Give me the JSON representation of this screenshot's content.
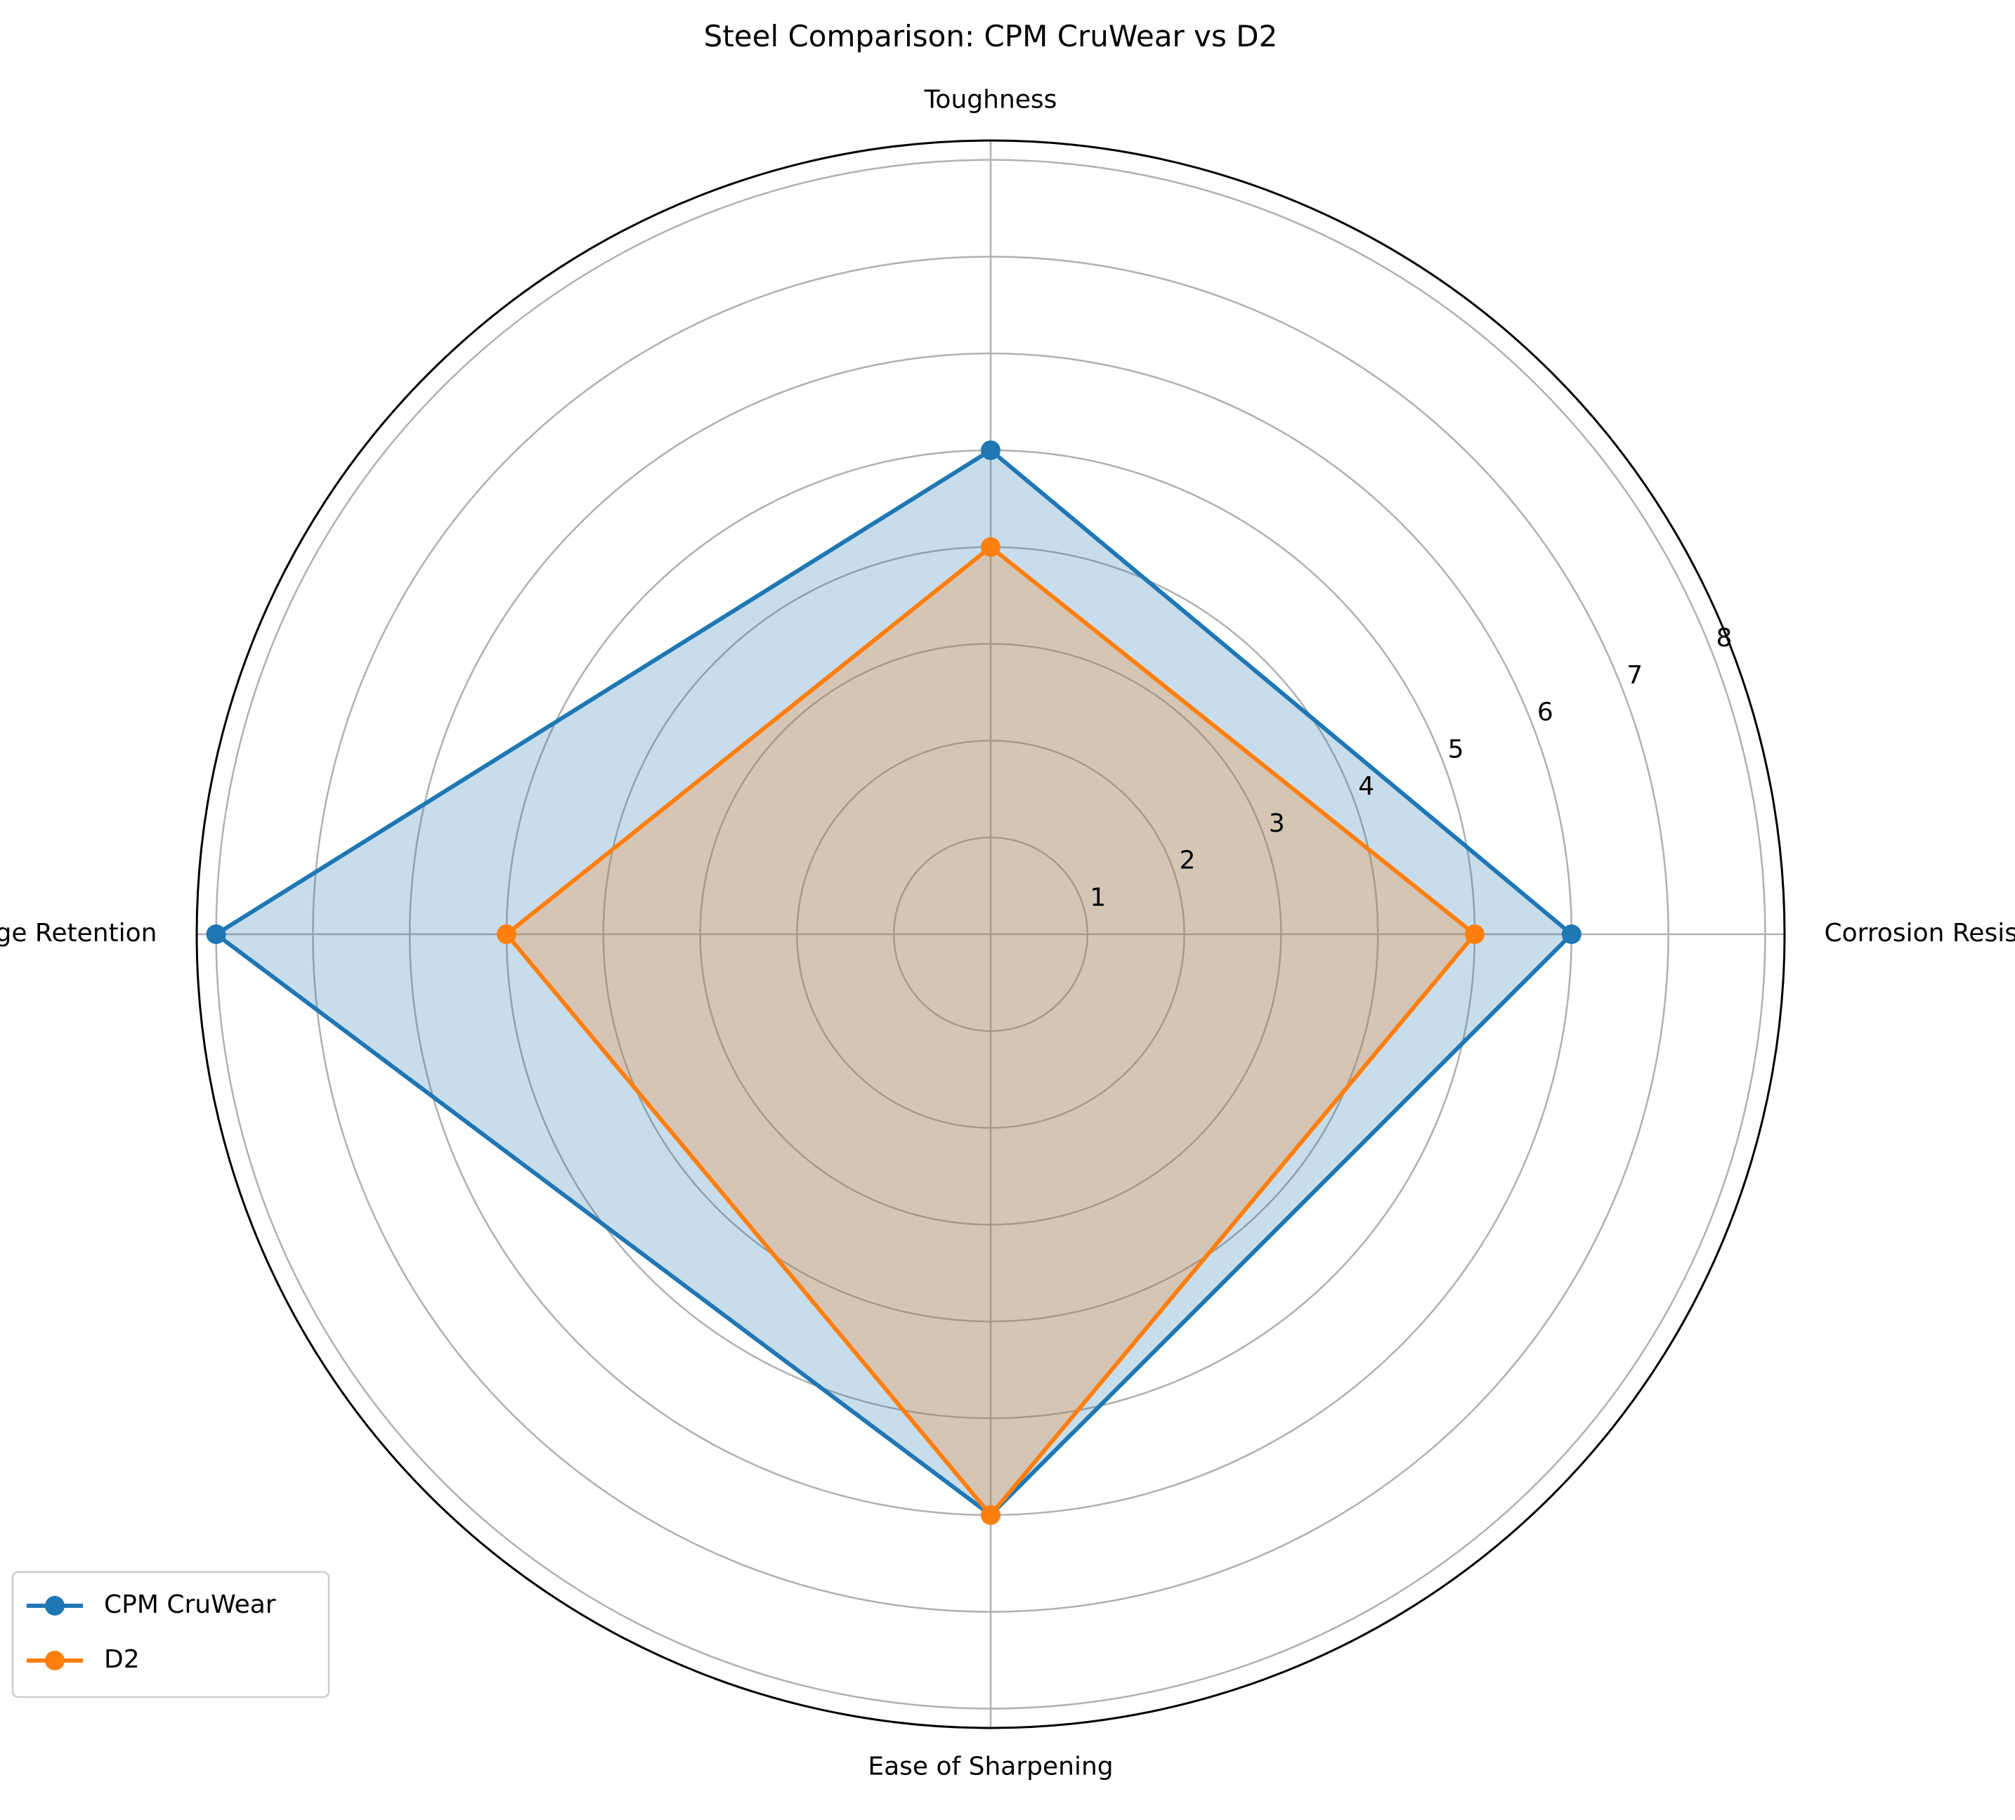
{
  "chart_data": {
    "type": "radar",
    "title": "Steel Comparison: CPM CruWear vs D2",
    "categories": [
      "Corrosion Resistance",
      "Toughness",
      "Edge Retention",
      "Ease of Sharpening"
    ],
    "r_ticks": [
      1,
      2,
      3,
      4,
      5,
      6,
      7,
      8
    ],
    "r_max": 8.2,
    "grid": true,
    "legend_position": "lower-left",
    "series": [
      {
        "name": "CPM CruWear",
        "values": [
          6,
          5,
          8,
          6
        ],
        "color": "#1f77b4"
      },
      {
        "name": "D2",
        "values": [
          5,
          4,
          5,
          6
        ],
        "color": "#ff7f0e"
      }
    ]
  }
}
